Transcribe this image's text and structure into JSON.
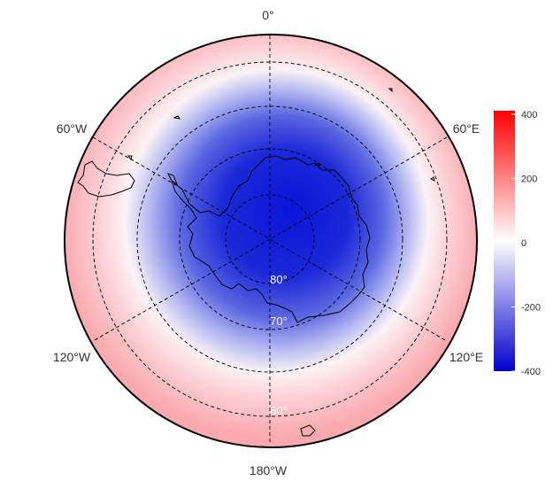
{
  "map": {
    "projection": "south-polar-stereographic",
    "longitude_labels": {
      "top": "0°",
      "upper_left": "60°W",
      "upper_right": "60°E",
      "lower_left": "120°W",
      "lower_right": "120°E",
      "bottom": "180°W"
    },
    "latitude_labels": [
      "80°",
      "70°",
      "60°"
    ],
    "colors": {
      "low": "#0000cc",
      "mid": "#ffffff",
      "high": "#ff0000",
      "coastline": "#000000",
      "graticule": "#000000"
    }
  },
  "colorbar": {
    "ticks": [
      "400",
      "200",
      "0",
      "-200",
      "-400"
    ],
    "range": [
      -400,
      400
    ]
  }
}
